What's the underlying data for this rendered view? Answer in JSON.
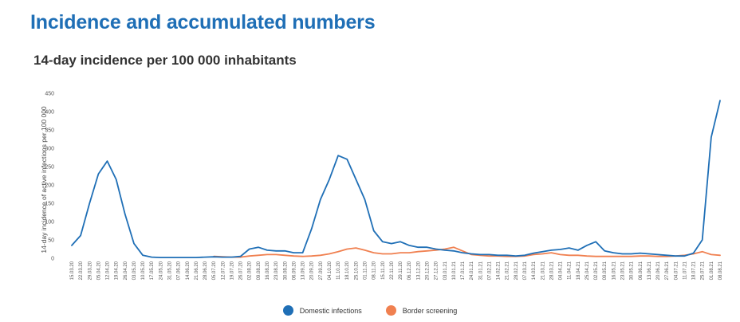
{
  "heading": "Incidence and accumulated numbers",
  "colors": {
    "heading": "#1f6fb6",
    "domestic": "#1f6fb6",
    "border": "#f08050"
  },
  "chart_data": {
    "type": "line",
    "title": "14-day incidence per 100 000 inhabitants",
    "ylabel": "14-day incidence of active infections per 100 000",
    "xlabel": "",
    "ylim": [
      0,
      450
    ],
    "yticks": [
      0,
      50,
      100,
      150,
      200,
      250,
      300,
      350,
      400,
      450
    ],
    "grid": false,
    "legend_position": "bottom-center",
    "x": [
      "15.03.20",
      "22.03.20",
      "29.03.20",
      "05.04.20",
      "12.04.20",
      "19.04.20",
      "26.04.20",
      "03.05.20",
      "10.05.20",
      "17.05.20",
      "24.05.20",
      "31.05.20",
      "07.06.20",
      "14.06.20",
      "21.06.20",
      "28.06.20",
      "05.07.20",
      "12.07.20",
      "19.07.20",
      "26.07.20",
      "02.08.20",
      "09.08.20",
      "16.08.20",
      "23.08.20",
      "30.08.20",
      "06.09.20",
      "13.09.20",
      "20.09.20",
      "27.09.20",
      "04.10.20",
      "11.10.20",
      "18.10.20",
      "25.10.20",
      "01.11.20",
      "08.11.20",
      "15.11.20",
      "22.11.20",
      "29.11.20",
      "06.12.20",
      "13.12.20",
      "20.12.20",
      "27.12.20",
      "03.01.21",
      "10.01.21",
      "17.01.21",
      "24.01.21",
      "31.01.21",
      "07.02.21",
      "14.02.21",
      "21.02.21",
      "28.02.21",
      "07.03.21",
      "14.03.21",
      "21.03.21",
      "28.03.21",
      "04.04.21",
      "11.04.21",
      "18.04.21",
      "25.04.21",
      "02.05.21",
      "09.05.21",
      "16.05.21",
      "23.05.21",
      "30.05.21",
      "06.06.21",
      "13.06.21",
      "20.06.21",
      "27.06.21",
      "04.07.21",
      "11.07.21",
      "18.07.21",
      "25.07.21",
      "01.08.21",
      "08.08.21"
    ],
    "series": [
      {
        "name": "Domestic infections",
        "values": [
          35,
          62,
          150,
          230,
          265,
          215,
          120,
          40,
          8,
          3,
          2,
          2,
          2,
          2,
          2,
          3,
          4,
          3,
          3,
          5,
          25,
          30,
          22,
          20,
          20,
          15,
          15,
          80,
          160,
          215,
          280,
          270,
          215,
          160,
          75,
          45,
          40,
          45,
          35,
          30,
          30,
          25,
          22,
          20,
          15,
          12,
          10,
          10,
          8,
          8,
          6,
          8,
          14,
          18,
          22,
          24,
          28,
          22,
          35,
          45,
          20,
          15,
          12,
          12,
          14,
          12,
          10,
          8,
          6,
          6,
          14,
          50,
          330,
          430
        ]
      },
      {
        "name": "Border screening",
        "values": [
          null,
          null,
          null,
          null,
          null,
          null,
          null,
          null,
          null,
          null,
          null,
          null,
          null,
          null,
          null,
          null,
          5,
          4,
          3,
          3,
          6,
          8,
          10,
          10,
          8,
          6,
          5,
          6,
          8,
          12,
          18,
          25,
          28,
          22,
          15,
          12,
          12,
          15,
          15,
          18,
          20,
          22,
          25,
          30,
          20,
          10,
          8,
          6,
          6,
          5,
          5,
          6,
          10,
          12,
          15,
          10,
          8,
          8,
          6,
          5,
          5,
          5,
          5,
          5,
          6,
          6,
          5,
          5,
          6,
          8,
          12,
          18,
          10,
          8
        ]
      }
    ]
  }
}
